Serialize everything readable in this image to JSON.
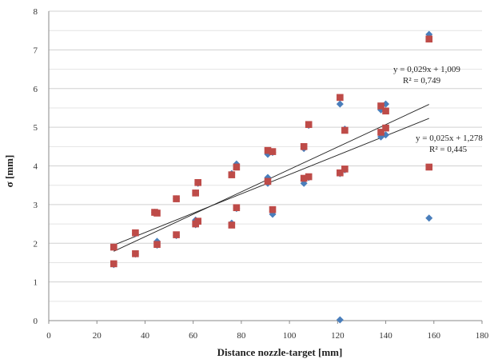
{
  "chart_data": {
    "type": "scatter",
    "xlabel": "Distance nozzle-target [mm]",
    "ylabel": "σ [mm]",
    "xlim": [
      0,
      180
    ],
    "ylim": [
      0,
      8
    ],
    "x_ticks": [
      "0",
      "20",
      "40",
      "60",
      "80",
      "100",
      "120",
      "140",
      "160",
      "180"
    ],
    "y_ticks": [
      "0",
      "1",
      "2",
      "3",
      "4",
      "5",
      "6",
      "7",
      "8"
    ],
    "grid": "horizontal",
    "colors": {
      "series_a": "#4a7ebb",
      "series_b": "#be4b48",
      "trend": "#222222",
      "grid": "#d0d0d0"
    },
    "series": [
      {
        "marker": "diamond",
        "points": [
          [
            27,
            1.9
          ],
          [
            27,
            1.45
          ],
          [
            36,
            2.25
          ],
          [
            36,
            1.72
          ],
          [
            44,
            2.8
          ],
          [
            45,
            2.05
          ],
          [
            45,
            1.95
          ],
          [
            53,
            2.2
          ],
          [
            53,
            3.15
          ],
          [
            61,
            2.6
          ],
          [
            61,
            2.48
          ],
          [
            61,
            3.3
          ],
          [
            62,
            3.55
          ],
          [
            62,
            2.55
          ],
          [
            76,
            2.52
          ],
          [
            76,
            3.8
          ],
          [
            78,
            4.05
          ],
          [
            78,
            2.9
          ],
          [
            91,
            4.3
          ],
          [
            91,
            3.7
          ],
          [
            91,
            3.55
          ],
          [
            93,
            2.75
          ],
          [
            93,
            4.35
          ],
          [
            106,
            4.45
          ],
          [
            106,
            3.55
          ],
          [
            108,
            5.05
          ],
          [
            108,
            3.7
          ],
          [
            121,
            0.02
          ],
          [
            121,
            5.6
          ],
          [
            121,
            3.8
          ],
          [
            123,
            4.95
          ],
          [
            123,
            3.9
          ],
          [
            138,
            5.45
          ],
          [
            138,
            4.75
          ],
          [
            140,
            4.8
          ],
          [
            140,
            5.6
          ],
          [
            158,
            7.4
          ],
          [
            158,
            2.65
          ]
        ],
        "trendline": {
          "slope": 0.025,
          "intercept": 1.278,
          "equation": "y = 0,025x + 1,278",
          "r2": "R² = 0,445"
        }
      },
      {
        "marker": "square",
        "points": [
          [
            27,
            1.9
          ],
          [
            27,
            1.47
          ],
          [
            36,
            2.27
          ],
          [
            36,
            1.73
          ],
          [
            44,
            2.8
          ],
          [
            45,
            2.78
          ],
          [
            45,
            1.97
          ],
          [
            53,
            2.22
          ],
          [
            53,
            3.15
          ],
          [
            61,
            2.5
          ],
          [
            61,
            3.3
          ],
          [
            62,
            3.57
          ],
          [
            62,
            2.57
          ],
          [
            76,
            2.47
          ],
          [
            76,
            3.77
          ],
          [
            78,
            3.97
          ],
          [
            78,
            2.92
          ],
          [
            91,
            4.4
          ],
          [
            91,
            3.6
          ],
          [
            93,
            2.87
          ],
          [
            93,
            4.37
          ],
          [
            106,
            4.5
          ],
          [
            106,
            3.68
          ],
          [
            108,
            5.07
          ],
          [
            108,
            3.72
          ],
          [
            121,
            5.77
          ],
          [
            121,
            3.82
          ],
          [
            123,
            4.92
          ],
          [
            123,
            3.92
          ],
          [
            138,
            5.55
          ],
          [
            138,
            4.87
          ],
          [
            140,
            5.42
          ],
          [
            140,
            4.98
          ],
          [
            158,
            7.28
          ],
          [
            158,
            3.97
          ]
        ],
        "trendline": {
          "slope": 0.029,
          "intercept": 1.009,
          "equation": "y = 0,029x + 1,009",
          "r2": "R² = 0,749"
        }
      }
    ]
  }
}
